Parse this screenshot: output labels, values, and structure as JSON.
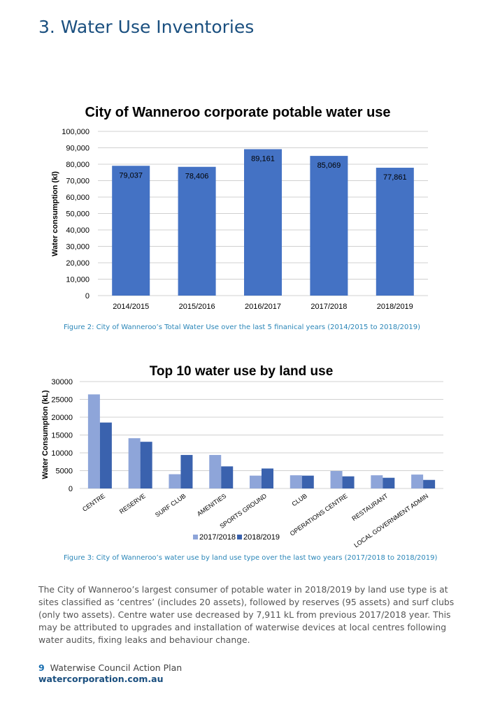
{
  "heading": "3. Water Use Inventories",
  "colors": {
    "bar": "#4472c4",
    "series_2017": "#8ea5d9",
    "series_2018": "#3a62ae",
    "heading": "#1a4f7f",
    "caption": "#2a86b8"
  },
  "chart_data": [
    {
      "type": "bar",
      "title": "City of Wanneroo corporate potable water use",
      "ylabel": "Water consumption (kl)",
      "xlabel": "",
      "ylim": [
        0,
        100000
      ],
      "yticks": [
        "0",
        "10,000",
        "20,000",
        "30,000",
        "40,000",
        "50,000",
        "60,000",
        "70,000",
        "80,000",
        "90,000",
        "100,000"
      ],
      "grid": true,
      "categories": [
        "2014/2015",
        "2015/2016",
        "2016/2017",
        "2017/2018",
        "2018/2019"
      ],
      "values": [
        79037,
        78406,
        89161,
        85069,
        77861
      ],
      "data_labels": [
        "79,037",
        "78,406",
        "89,161",
        "85,069",
        "77,861"
      ]
    },
    {
      "type": "bar",
      "title": "Top 10 water use by land use",
      "ylabel": "Water Consumption (kL)",
      "xlabel": "",
      "ylim": [
        0,
        30000
      ],
      "yticks": [
        "0",
        "5000",
        "10000",
        "15000",
        "20000",
        "25000",
        "30000"
      ],
      "grid": true,
      "legend": "bottom",
      "categories": [
        "CENTRE",
        "RESERVE",
        "SURF CLUB",
        "AMENITIES",
        "SPORTS GROUND",
        "CLUB",
        "OPERATIONS CENTRE",
        "RESTAURANT",
        "LOCAL GOVERNMENT ADMIN"
      ],
      "series": [
        {
          "name": "2017/2018",
          "values": [
            26400,
            14100,
            4000,
            9400,
            3600,
            3700,
            4900,
            3700,
            3900
          ]
        },
        {
          "name": "2018/2019",
          "values": [
            18500,
            13100,
            9400,
            6200,
            5600,
            3600,
            3400,
            3000,
            2400
          ]
        }
      ]
    }
  ],
  "captions": {
    "fig2": "Figure 2:   City of Wanneroo’s Total Water Use over the last 5 finanical years (2014/2015 to 2018/2019)",
    "fig3": "Figure 3:   City of Wanneroo’s water use by land use type over the last two years (2017/2018 to 2018/2019)"
  },
  "body_text": "The City of Wanneroo’s largest consumer of potable water in 2018/2019 by land use type is at sites classified as ‘centres’ (includes 20 assets), followed by reserves (95 assets) and surf clubs (only two assets). Centre water use decreased by 7,911 kL from previous 2017/2018 year. This may be attributed to upgrades and installation of waterwise devices at local centres following water audits, fixing leaks and behaviour change.",
  "footer": {
    "page_number": "9",
    "doc_title": "Waterwise Council Action Plan",
    "url": "watercorporation.com.au"
  }
}
